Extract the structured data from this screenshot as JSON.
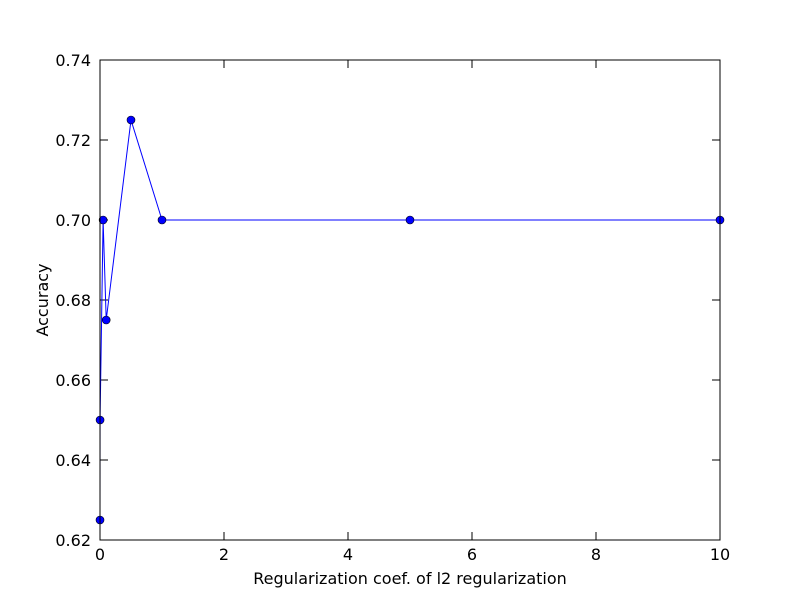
{
  "chart_data": {
    "type": "line",
    "title": "",
    "xlabel": "Regularization coef. of l2 regularization",
    "ylabel": "Accuracy",
    "xlim": [
      0,
      10
    ],
    "ylim": [
      0.62,
      0.74
    ],
    "xticks": [
      0,
      2,
      4,
      6,
      8,
      10
    ],
    "xtick_labels": [
      "0",
      "2",
      "4",
      "6",
      "8",
      "10"
    ],
    "yticks": [
      0.62,
      0.64,
      0.66,
      0.68,
      0.7,
      0.72,
      0.74
    ],
    "ytick_labels": [
      "0.62",
      "0.64",
      "0.66",
      "0.68",
      "0.70",
      "0.72",
      "0.74"
    ],
    "grid": false,
    "series": [
      {
        "color": "#0000ff",
        "marker": "circle",
        "x": [
          0.0001,
          0.001,
          0.05,
          0.1,
          0.5,
          1,
          5,
          10
        ],
        "y": [
          0.625,
          0.65,
          0.7,
          0.675,
          0.725,
          0.7,
          0.7,
          0.7
        ]
      }
    ]
  }
}
